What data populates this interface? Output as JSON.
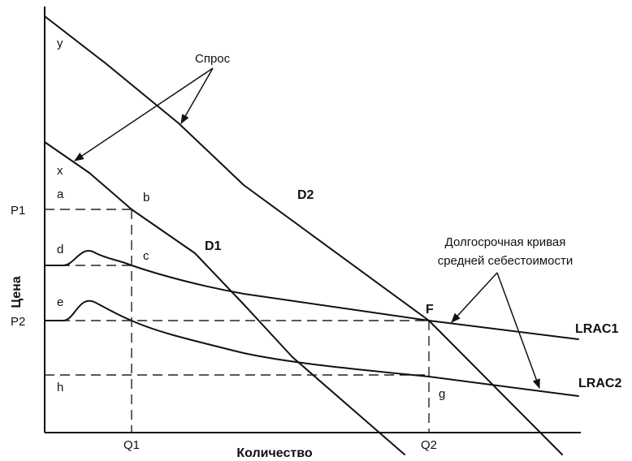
{
  "axes": {
    "y_label": "Цена",
    "x_label": "Количество",
    "price_ticks": {
      "p1": "P1",
      "p2": "P2"
    },
    "quantity_ticks": {
      "q1": "Q1",
      "q2": "Q2"
    }
  },
  "curves": {
    "d1": "D1",
    "d2": "D2",
    "lrac1": "LRAC1",
    "lrac2": "LRAC2"
  },
  "annotations": {
    "demand": "Спрос",
    "lrac_line1": "Долгосрочная кривая",
    "lrac_line2": "средней себестоимости"
  },
  "points": {
    "y": "y",
    "x": "x",
    "a": "a",
    "b": "b",
    "c": "c",
    "d": "d",
    "e": "e",
    "f": "F",
    "g": "g",
    "h": "h"
  }
}
